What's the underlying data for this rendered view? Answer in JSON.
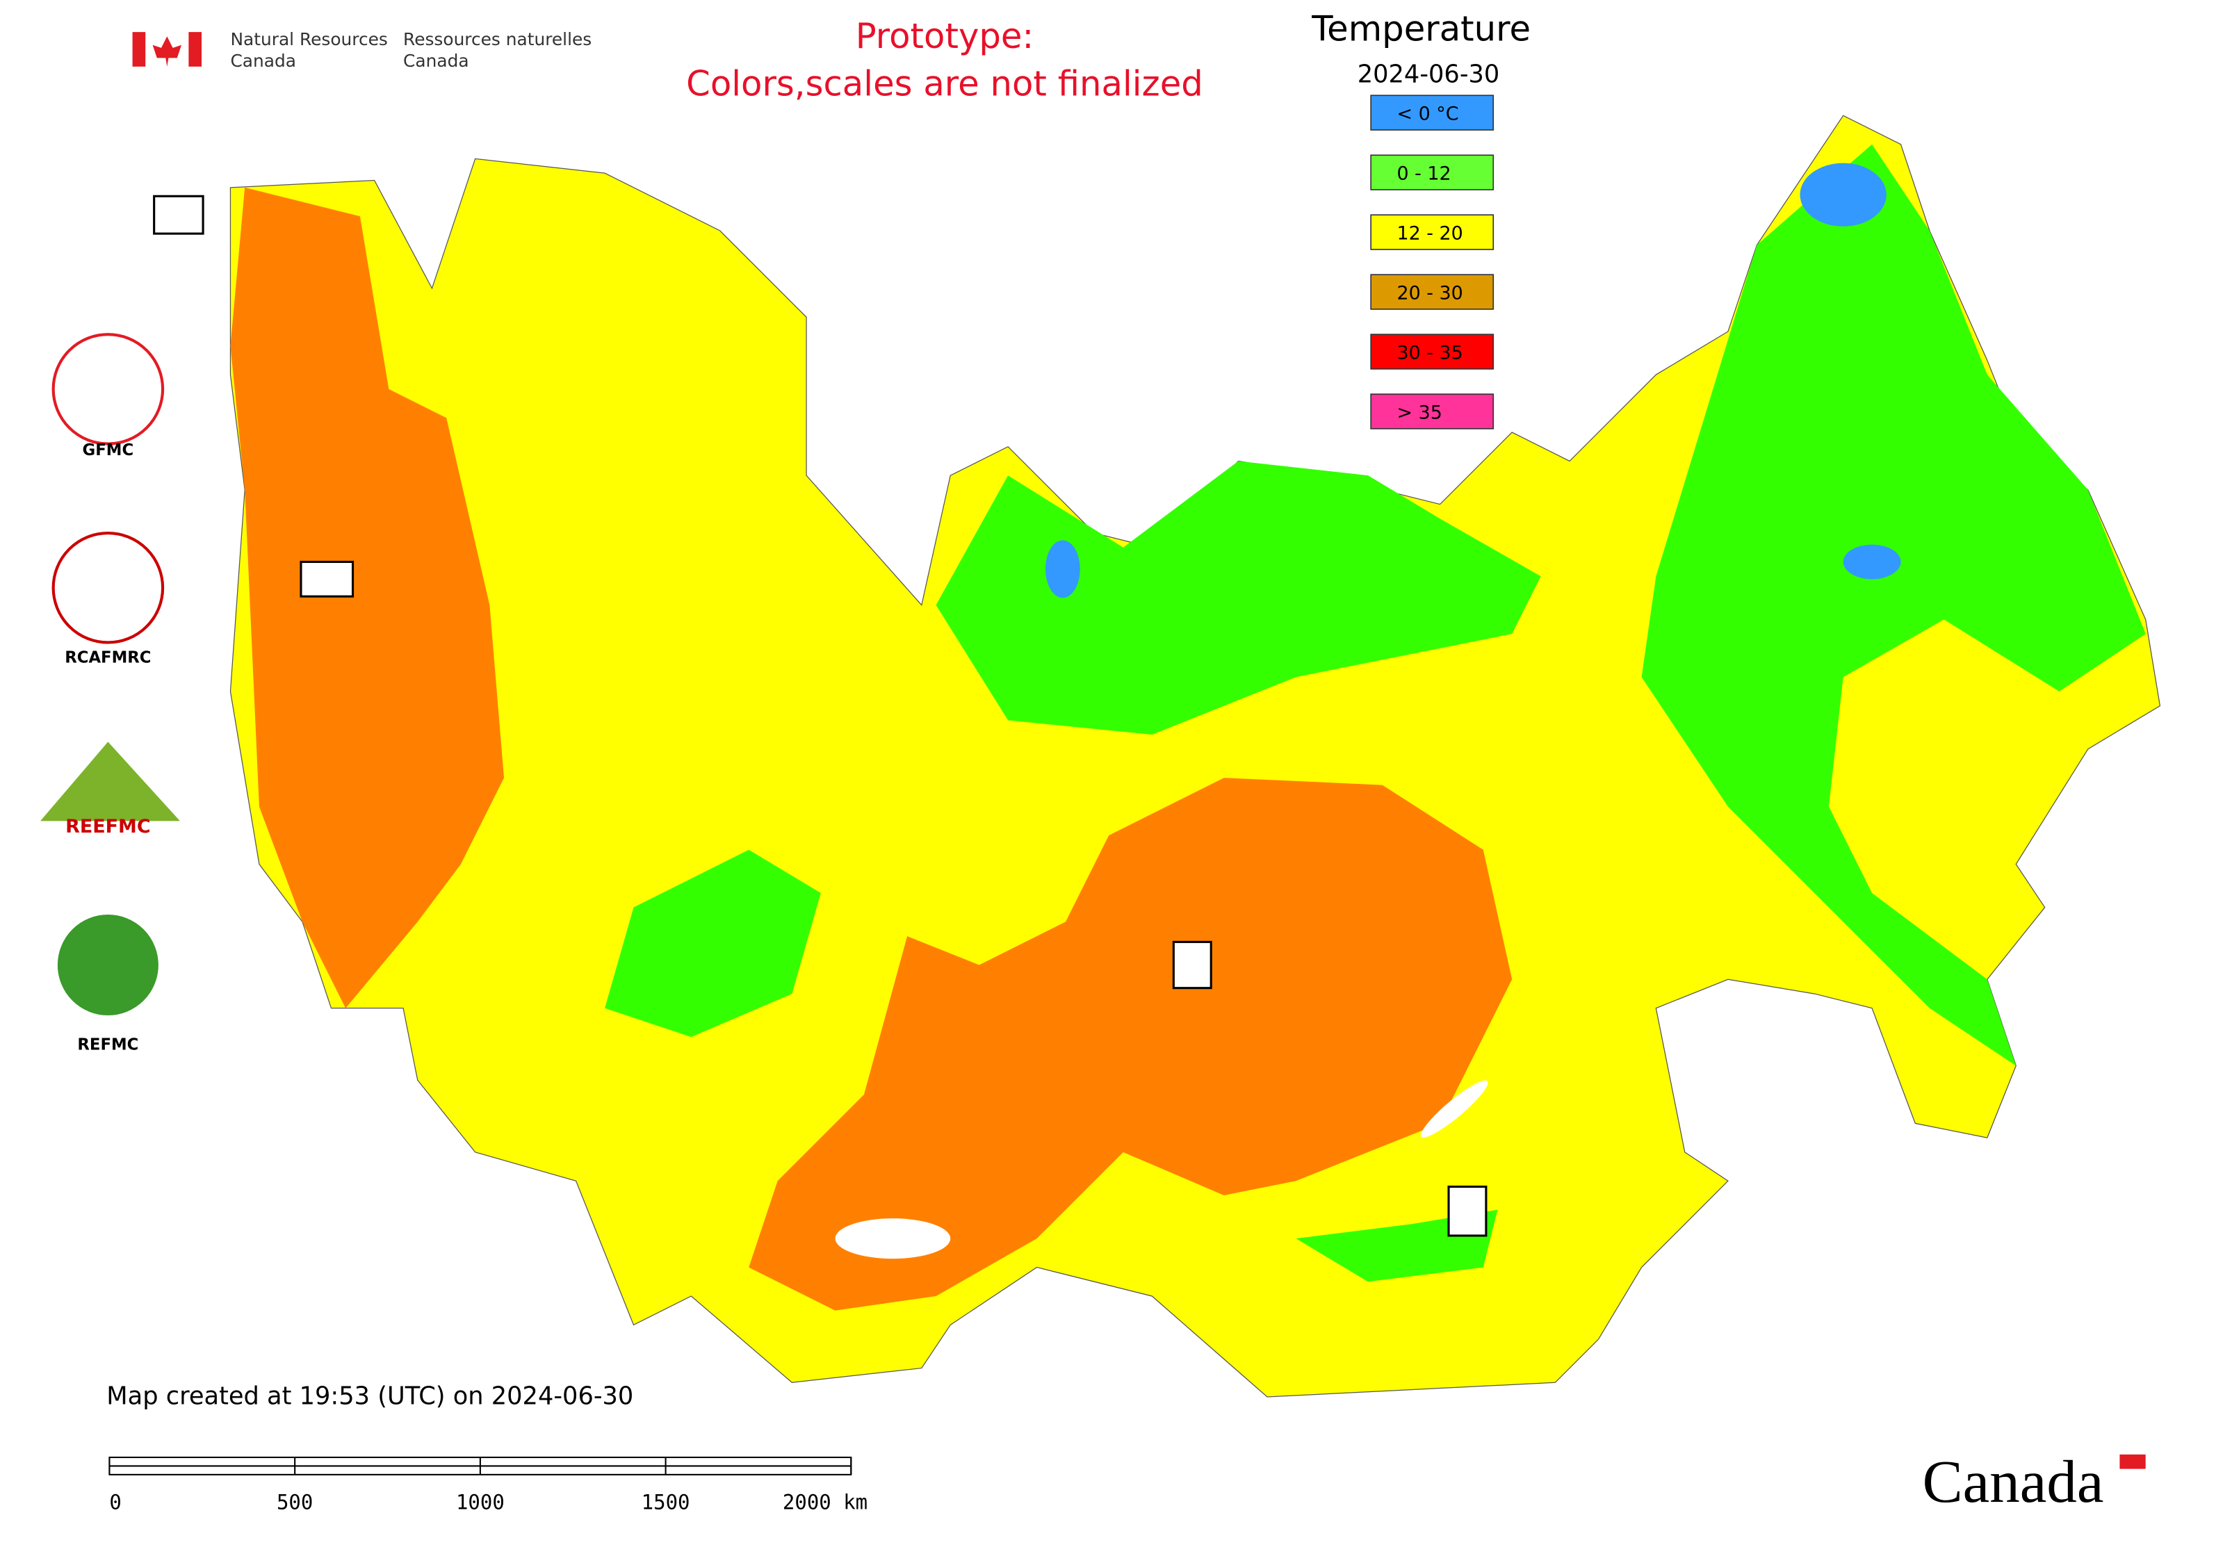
{
  "header": {
    "agency_en": [
      "Natural Resources",
      "Canada"
    ],
    "agency_fr": [
      "Ressources naturelles",
      "Canada"
    ],
    "notice": [
      "Prototype:",
      "Colors,scales are not finalized"
    ]
  },
  "legend": {
    "title": "Temperature",
    "date": "2024-06-30",
    "items": [
      {
        "label": "< 0 °C",
        "color": "#3399ff"
      },
      {
        "label": "0 - 12",
        "color": "#66ff33"
      },
      {
        "label": "12 - 20",
        "color": "#ffff00"
      },
      {
        "label": "20 - 30",
        "color": "#dd9900"
      },
      {
        "label": "30 - 35",
        "color": "#ff0000"
      },
      {
        "label": "> 35",
        "color": "#ff3399"
      }
    ]
  },
  "logos": [
    "GFMC",
    "RCAFMRC",
    "REEFMC",
    "REFMC"
  ],
  "footer": {
    "created": "Map created at 19:53 (UTC) on 2024-06-30",
    "scale_labels": [
      "0",
      "500",
      "1000",
      "1500",
      "2000 km"
    ]
  },
  "wordmark": "Canada"
}
